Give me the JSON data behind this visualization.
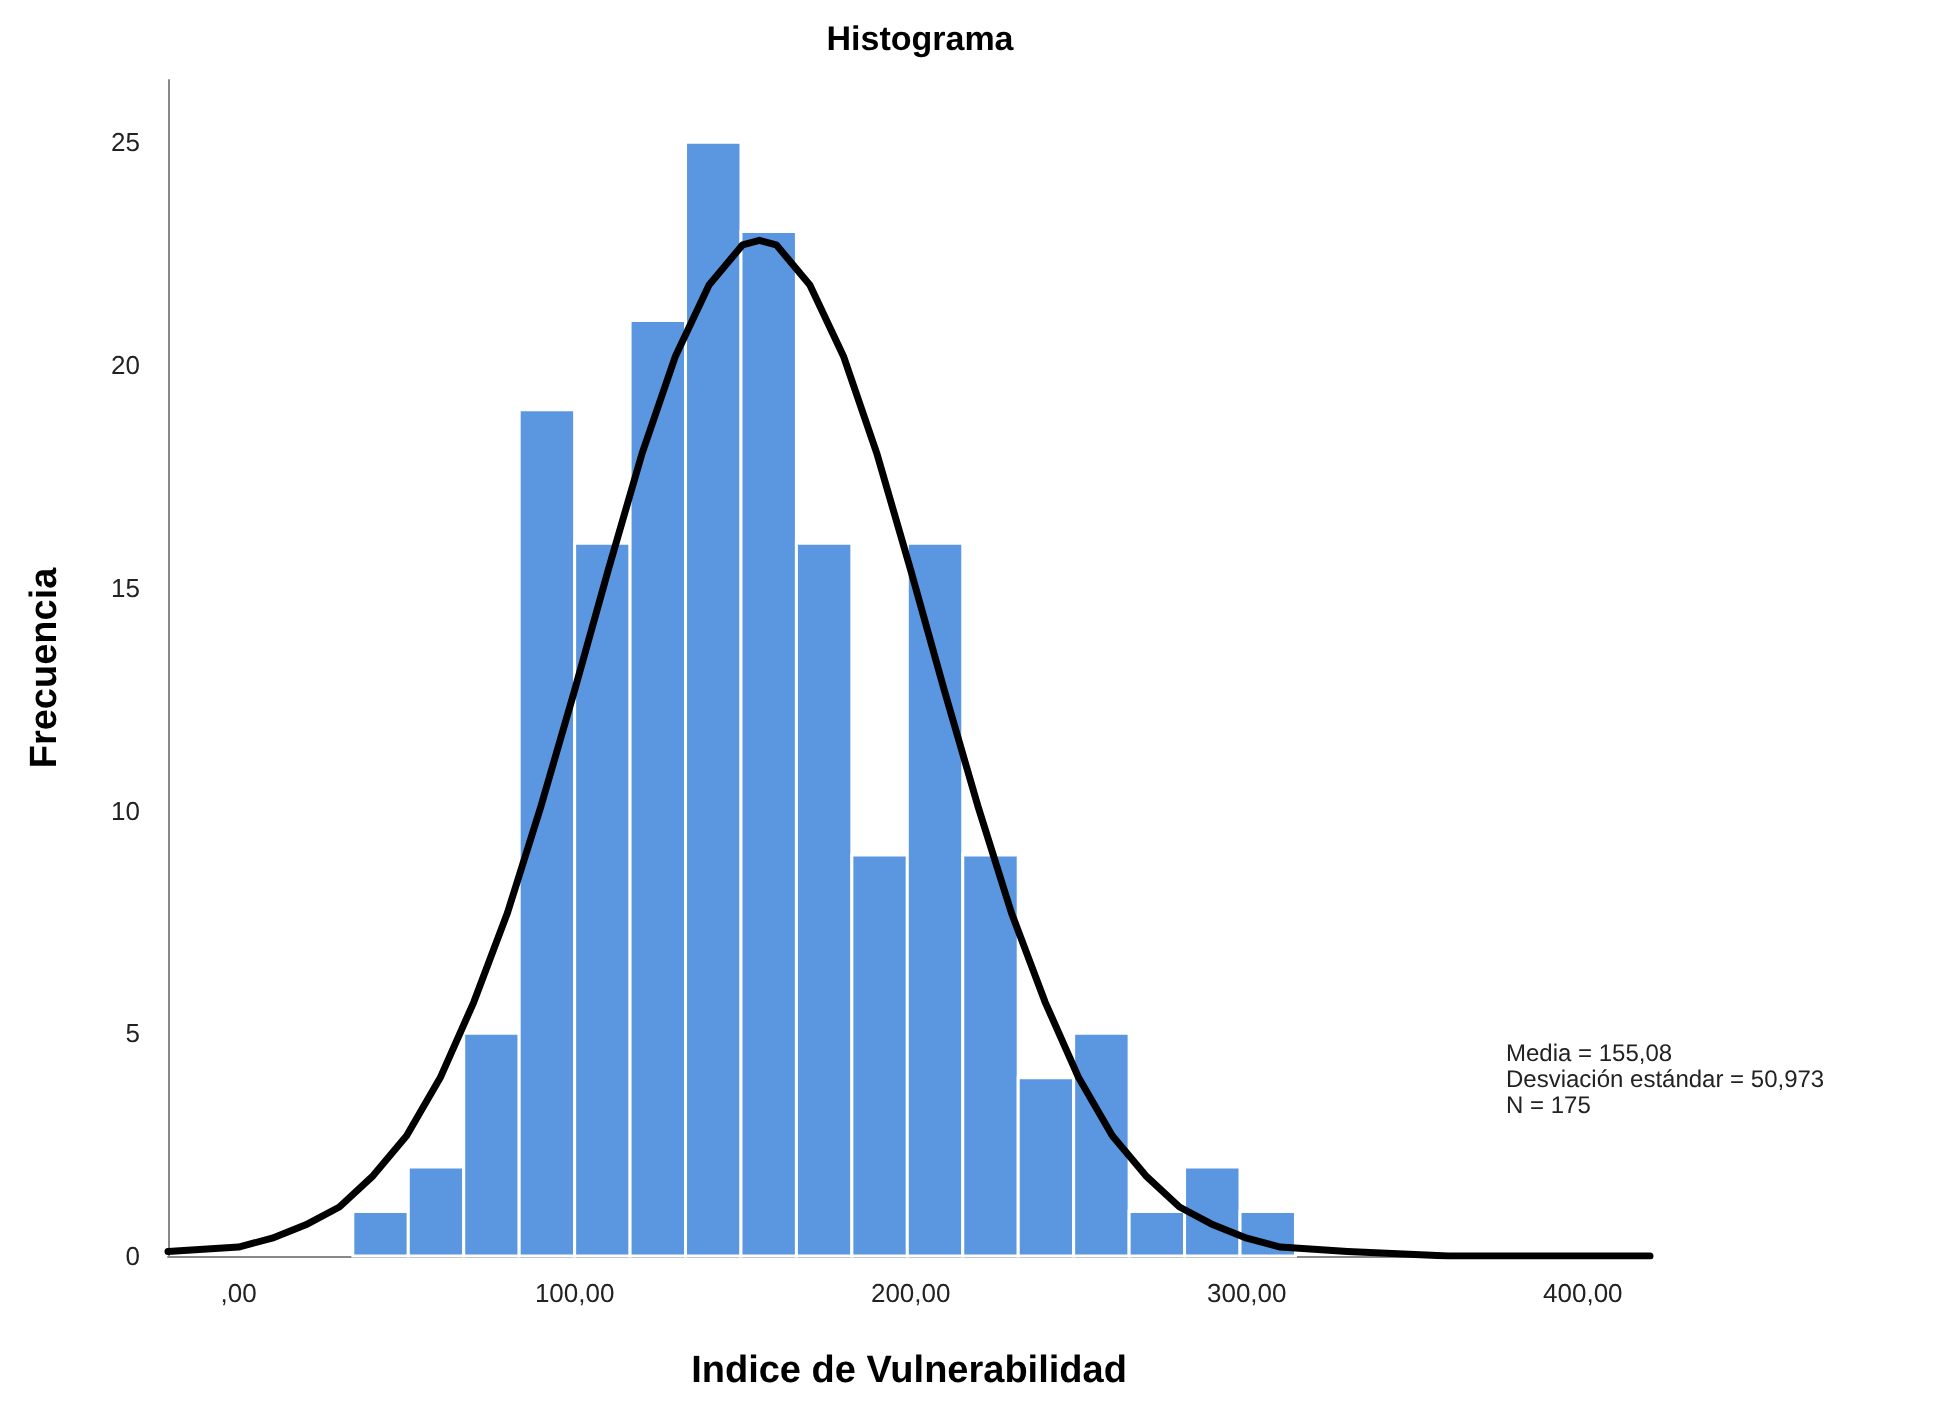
{
  "chart_data": {
    "type": "histogram",
    "title": "Histograma",
    "xlabel": "Indice de Vulnerabilidad",
    "ylabel": "Frecuencia",
    "bins": [
      34,
      50.5,
      67,
      83.5,
      100,
      116.5,
      133,
      149.5,
      166,
      182.5,
      199,
      215.5,
      232,
      248.5,
      265,
      281.5,
      298,
      314.5
    ],
    "values": [
      1,
      2,
      5,
      19,
      16,
      21,
      25,
      23,
      16,
      9,
      16,
      9,
      4,
      5,
      1,
      2,
      1
    ],
    "color": "#5b96e0",
    "series": [
      {
        "type": "line",
        "color": "#000000",
        "x": [
          -21,
          0,
          10,
          20,
          30,
          40,
          50,
          60,
          70,
          80,
          90,
          100,
          110,
          120,
          130,
          140,
          150,
          155,
          160,
          170,
          180,
          190,
          200,
          210,
          220,
          230,
          240,
          250,
          260,
          270,
          280,
          290,
          300,
          310,
          330,
          360,
          420
        ],
        "values": [
          0.1,
          0.2,
          0.4,
          0.7,
          1.1,
          1.8,
          2.7,
          4.0,
          5.7,
          7.7,
          10.1,
          12.7,
          15.4,
          18.0,
          20.2,
          21.8,
          22.7,
          22.8,
          22.7,
          21.8,
          20.2,
          18.0,
          15.4,
          12.7,
          10.1,
          7.7,
          5.7,
          4.0,
          2.7,
          1.8,
          1.1,
          0.7,
          0.4,
          0.2,
          0.1,
          0,
          0
        ]
      }
    ],
    "xlim": [
      -21,
      420
    ],
    "xticks": [
      {
        "value": 0,
        "label": ",00"
      },
      {
        "value": 100,
        "label": "100,00"
      },
      {
        "value": 200,
        "label": "200,00"
      },
      {
        "value": 300,
        "label": "300,00"
      },
      {
        "value": 400,
        "label": "400,00"
      }
    ],
    "ylim": [
      0,
      26.4
    ],
    "yticks": [
      0,
      5,
      10,
      15,
      20,
      25
    ],
    "grid": false,
    "annotations": [
      "Media = 155,08",
      "Desviación estándar = 50,973",
      "N = 175"
    ]
  }
}
